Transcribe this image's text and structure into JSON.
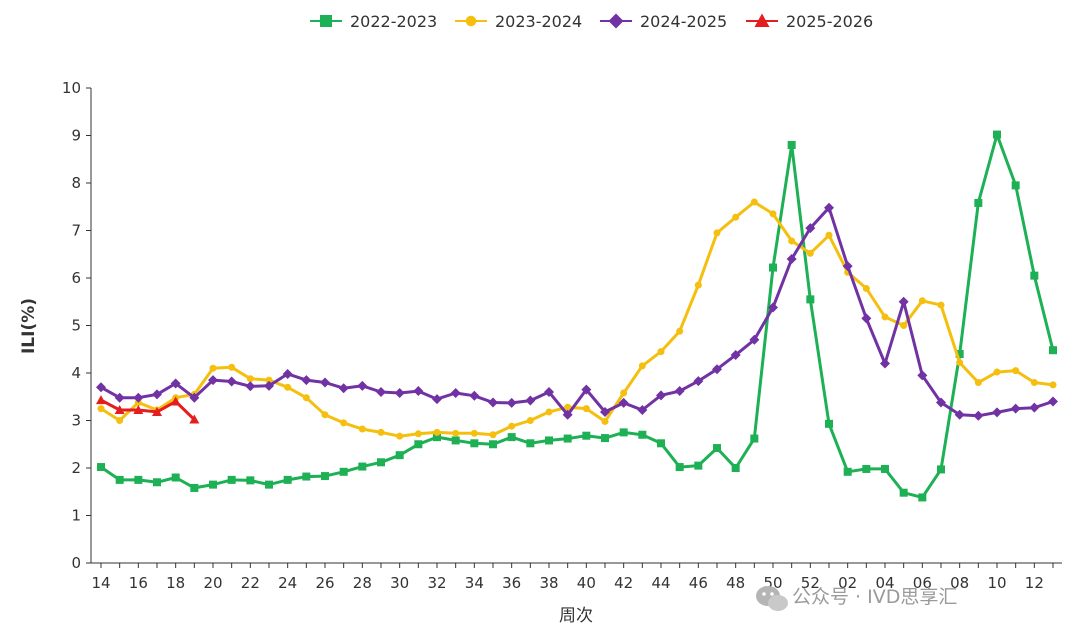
{
  "chart_data": {
    "type": "line",
    "title": "",
    "xlabel": "周次",
    "ylabel": "ILI(%)",
    "ylim": [
      0,
      10
    ],
    "yticks": [
      0,
      1,
      2,
      3,
      4,
      5,
      6,
      7,
      8,
      9,
      10
    ],
    "legend_position": "top-center",
    "grid": false,
    "weeks": [
      14,
      15,
      16,
      17,
      18,
      19,
      20,
      21,
      22,
      23,
      24,
      25,
      26,
      27,
      28,
      29,
      30,
      31,
      32,
      33,
      34,
      35,
      36,
      37,
      38,
      39,
      40,
      41,
      42,
      43,
      44,
      45,
      46,
      47,
      48,
      49,
      50,
      51,
      52,
      1,
      2,
      3,
      4,
      5,
      6,
      7,
      8,
      9,
      10,
      11,
      12,
      13
    ],
    "tick_labels": [
      "14",
      "16",
      "18",
      "20",
      "22",
      "24",
      "26",
      "28",
      "30",
      "32",
      "34",
      "36",
      "38",
      "40",
      "42",
      "44",
      "46",
      "48",
      "50",
      "52",
      "02",
      "04",
      "06",
      "08",
      "10",
      "12"
    ],
    "series": [
      {
        "name": "2022-2023",
        "color": "#1db054",
        "marker": "square",
        "values": [
          2.02,
          1.75,
          1.75,
          1.7,
          1.8,
          1.58,
          1.65,
          1.75,
          1.74,
          1.65,
          1.75,
          1.82,
          1.83,
          1.92,
          2.03,
          2.12,
          2.27,
          2.5,
          2.65,
          2.58,
          2.52,
          2.5,
          2.65,
          2.52,
          2.58,
          2.62,
          2.68,
          2.63,
          2.75,
          2.7,
          2.52,
          2.02,
          2.05,
          2.42,
          2.0,
          2.62,
          6.22,
          8.8,
          5.55,
          2.93,
          1.92,
          1.98,
          1.98,
          1.48,
          1.38,
          1.97,
          4.4,
          7.58,
          9.02,
          7.95,
          6.05,
          4.48
        ]
      },
      {
        "name": "2023-2024",
        "color": "#f5bf0f",
        "marker": "circle",
        "values": [
          3.25,
          3.0,
          3.38,
          3.22,
          3.48,
          3.55,
          4.1,
          4.12,
          3.88,
          3.85,
          3.7,
          3.48,
          3.12,
          2.95,
          2.82,
          2.75,
          2.67,
          2.72,
          2.75,
          2.73,
          2.73,
          2.7,
          2.88,
          3.0,
          3.18,
          3.28,
          3.25,
          2.98,
          3.58,
          4.15,
          4.45,
          4.88,
          5.85,
          6.95,
          7.28,
          7.6,
          7.35,
          6.78,
          6.52,
          6.9,
          6.12,
          5.78,
          5.18,
          5.0,
          5.52,
          5.43,
          4.22,
          3.8,
          4.02,
          4.05,
          3.8,
          3.75
        ]
      },
      {
        "name": "2024-2025",
        "color": "#7132a3",
        "marker": "diamond",
        "values": [
          3.7,
          3.48,
          3.48,
          3.55,
          3.78,
          3.48,
          3.85,
          3.82,
          3.72,
          3.73,
          3.98,
          3.85,
          3.8,
          3.68,
          3.73,
          3.6,
          3.58,
          3.62,
          3.45,
          3.58,
          3.52,
          3.38,
          3.37,
          3.42,
          3.6,
          3.12,
          3.65,
          3.18,
          3.37,
          3.22,
          3.53,
          3.62,
          3.83,
          4.08,
          4.38,
          4.7,
          5.38,
          6.4,
          7.05,
          7.48,
          6.25,
          5.15,
          4.2,
          5.5,
          3.95,
          3.38,
          3.12,
          3.1,
          3.17,
          3.25,
          3.27,
          3.4
        ]
      },
      {
        "name": "2025-2026",
        "color": "#e41e1e",
        "marker": "triangle",
        "values": [
          3.43,
          3.22,
          3.22,
          3.18,
          3.4,
          3.02
        ]
      }
    ]
  },
  "watermark": {
    "text": "公众号 · IVD思享汇"
  }
}
